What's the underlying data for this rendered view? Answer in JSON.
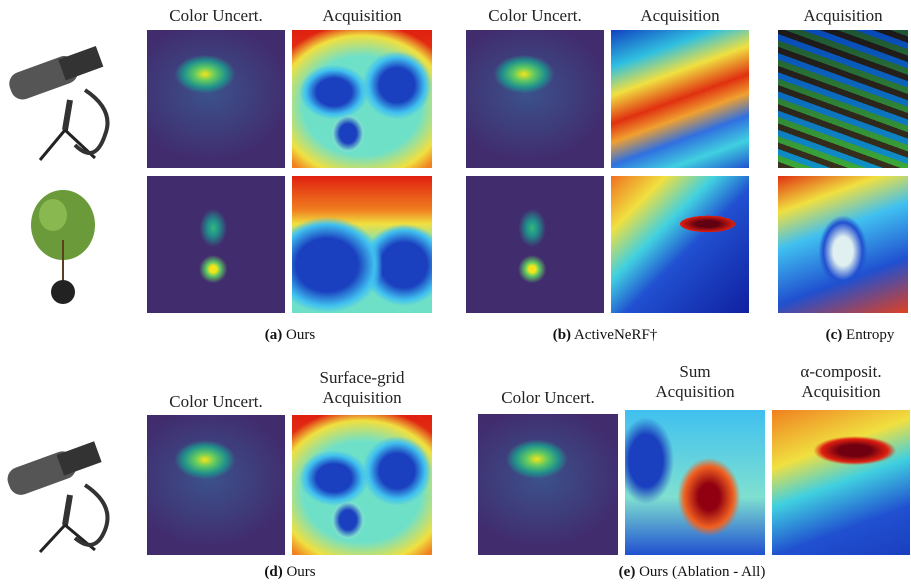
{
  "panels": [
    {
      "label": "(a)",
      "caption": "Ours",
      "columns": [
        [
          "Color Uncert."
        ],
        [
          "Acquisition"
        ]
      ]
    },
    {
      "label": "(b)",
      "caption": "ActiveNeRF†",
      "columns": [
        [
          "Color Uncert."
        ],
        [
          "Acquisition"
        ]
      ]
    },
    {
      "label": "(c)",
      "caption": "Entropy",
      "columns": [
        [
          "Acquisition"
        ]
      ]
    },
    {
      "label": "(d)",
      "caption": "Ours",
      "columns": [
        [
          "Color Uncert."
        ],
        [
          "Surface-grid",
          "Acquisition"
        ]
      ]
    },
    {
      "label": "(e)",
      "caption": "Ours (Ablation - All)",
      "columns": [
        [
          "Color Uncert."
        ],
        [
          "Sum",
          "Acquisition"
        ],
        [
          "α-composit.",
          "Acquisition"
        ]
      ]
    }
  ]
}
